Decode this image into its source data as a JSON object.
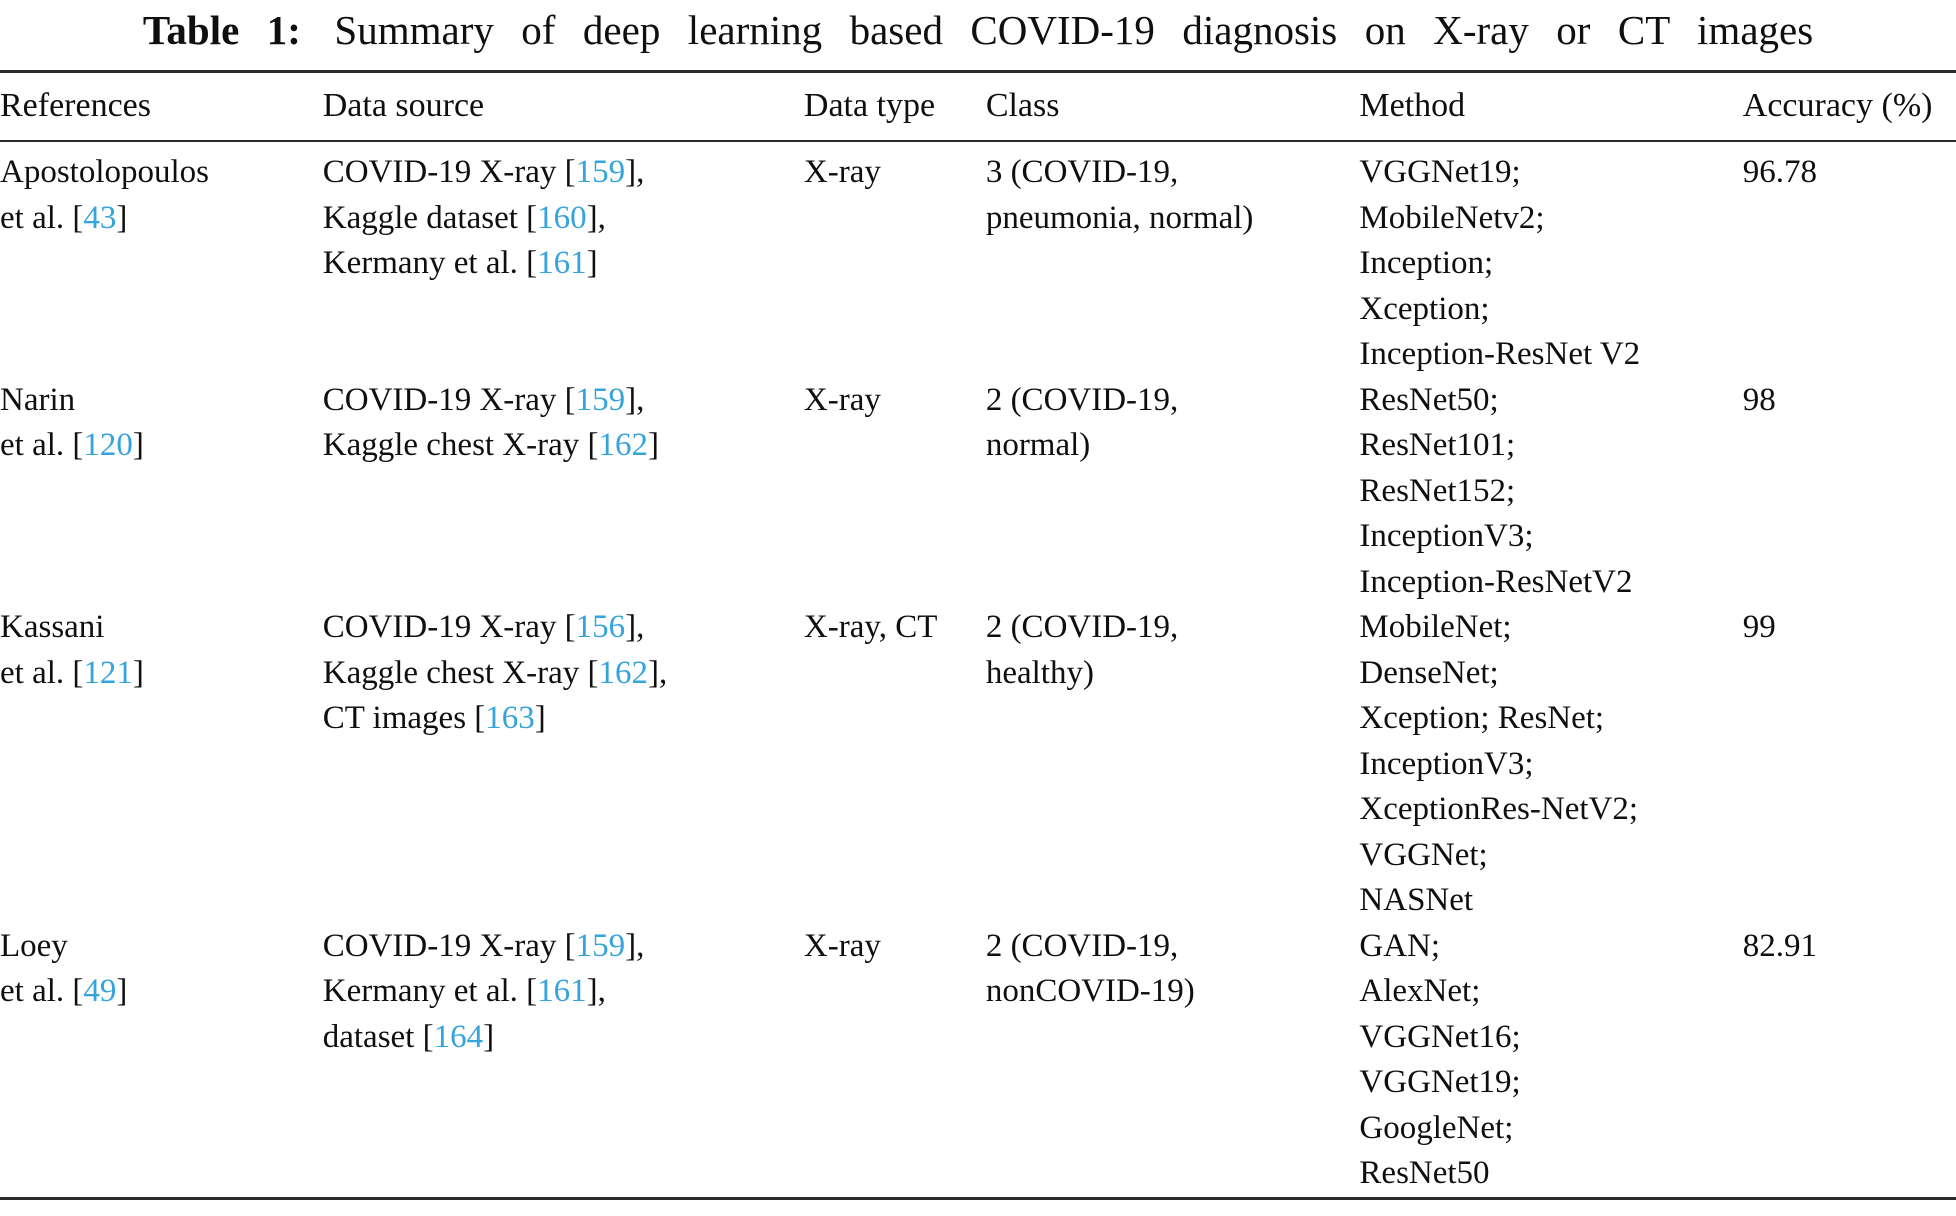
{
  "title": {
    "label": "Table 1:",
    "text": "Summary of deep learning based COVID-19 diagnosis on X-ray or CT images"
  },
  "colors": {
    "citation": "#35a3dc",
    "text": "#0f0f0f",
    "rule": "#2b2b2b"
  },
  "table": {
    "columns": [
      "References",
      "Data source",
      "Data type",
      "Class",
      "Method",
      "Accuracy (%)"
    ],
    "column_keys": [
      "references",
      "data_source",
      "data_type",
      "class",
      "method",
      "accuracy"
    ],
    "rows": [
      {
        "references": [
          [
            {
              "t": "Apostolopoulos"
            }
          ],
          [
            {
              "t": "et al. ["
            },
            {
              "t": "43",
              "c": true
            },
            {
              "t": "]"
            }
          ]
        ],
        "data_source": [
          [
            {
              "t": "COVID-19 X-ray ["
            },
            {
              "t": "159",
              "c": true
            },
            {
              "t": "],"
            }
          ],
          [
            {
              "t": "Kaggle dataset ["
            },
            {
              "t": "160",
              "c": true
            },
            {
              "t": "],"
            }
          ],
          [
            {
              "t": "Kermany et al. ["
            },
            {
              "t": "161",
              "c": true
            },
            {
              "t": "]"
            }
          ]
        ],
        "data_type": [
          [
            {
              "t": "X-ray"
            }
          ]
        ],
        "class": [
          [
            {
              "t": "3 (COVID-19,"
            }
          ],
          [
            {
              "t": "pneumonia, normal)"
            }
          ]
        ],
        "method": [
          [
            {
              "t": "VGGNet19;"
            }
          ],
          [
            {
              "t": "MobileNetv2;"
            }
          ],
          [
            {
              "t": "Inception;"
            }
          ],
          [
            {
              "t": "Xception;"
            }
          ],
          [
            {
              "t": "Inception-ResNet V2"
            }
          ]
        ],
        "accuracy": [
          [
            {
              "t": "96.78"
            }
          ]
        ]
      },
      {
        "references": [
          [
            {
              "t": "Narin"
            }
          ],
          [
            {
              "t": "et al. ["
            },
            {
              "t": "120",
              "c": true
            },
            {
              "t": "]"
            }
          ]
        ],
        "data_source": [
          [
            {
              "t": "COVID-19 X-ray ["
            },
            {
              "t": "159",
              "c": true
            },
            {
              "t": "],"
            }
          ],
          [
            {
              "t": "Kaggle chest X-ray ["
            },
            {
              "t": "162",
              "c": true
            },
            {
              "t": "]"
            }
          ]
        ],
        "data_type": [
          [
            {
              "t": "X-ray"
            }
          ]
        ],
        "class": [
          [
            {
              "t": "2 (COVID-19,"
            }
          ],
          [
            {
              "t": "normal)"
            }
          ]
        ],
        "method": [
          [
            {
              "t": "ResNet50;"
            }
          ],
          [
            {
              "t": "ResNet101;"
            }
          ],
          [
            {
              "t": "ResNet152;"
            }
          ],
          [
            {
              "t": "InceptionV3;"
            }
          ],
          [
            {
              "t": "Inception-ResNetV2"
            }
          ]
        ],
        "accuracy": [
          [
            {
              "t": "98"
            }
          ]
        ]
      },
      {
        "references": [
          [
            {
              "t": "Kassani"
            }
          ],
          [
            {
              "t": "et al. ["
            },
            {
              "t": "121",
              "c": true
            },
            {
              "t": "]"
            }
          ]
        ],
        "data_source": [
          [
            {
              "t": "COVID-19 X-ray ["
            },
            {
              "t": "156",
              "c": true
            },
            {
              "t": "],"
            }
          ],
          [
            {
              "t": "Kaggle chest X-ray ["
            },
            {
              "t": "162",
              "c": true
            },
            {
              "t": "],"
            }
          ],
          [
            {
              "t": "CT images ["
            },
            {
              "t": "163",
              "c": true
            },
            {
              "t": "]"
            }
          ]
        ],
        "data_type": [
          [
            {
              "t": "X-ray, CT"
            }
          ]
        ],
        "class": [
          [
            {
              "t": "2 (COVID-19,"
            }
          ],
          [
            {
              "t": "healthy)"
            }
          ]
        ],
        "method": [
          [
            {
              "t": "MobileNet;"
            }
          ],
          [
            {
              "t": "DenseNet;"
            }
          ],
          [
            {
              "t": "Xception; ResNet;"
            }
          ],
          [
            {
              "t": "InceptionV3;"
            }
          ],
          [
            {
              "t": "XceptionRes-NetV2;"
            }
          ],
          [
            {
              "t": "VGGNet;"
            }
          ],
          [
            {
              "t": "NASNet"
            }
          ]
        ],
        "accuracy": [
          [
            {
              "t": "99"
            }
          ]
        ]
      },
      {
        "references": [
          [
            {
              "t": "Loey"
            }
          ],
          [
            {
              "t": "et al. ["
            },
            {
              "t": "49",
              "c": true
            },
            {
              "t": "]"
            }
          ]
        ],
        "data_source": [
          [
            {
              "t": "COVID-19 X-ray ["
            },
            {
              "t": "159",
              "c": true
            },
            {
              "t": "],"
            }
          ],
          [
            {
              "t": "Kermany et al. ["
            },
            {
              "t": "161",
              "c": true
            },
            {
              "t": "],"
            }
          ],
          [
            {
              "t": "dataset ["
            },
            {
              "t": "164",
              "c": true
            },
            {
              "t": "]"
            }
          ]
        ],
        "data_type": [
          [
            {
              "t": "X-ray"
            }
          ]
        ],
        "class": [
          [
            {
              "t": "2 (COVID-19,"
            }
          ],
          [
            {
              "t": "nonCOVID-19)"
            }
          ]
        ],
        "method": [
          [
            {
              "t": "GAN;"
            }
          ],
          [
            {
              "t": "AlexNet;"
            }
          ],
          [
            {
              "t": "VGGNet16;"
            }
          ],
          [
            {
              "t": "VGGNet19;"
            }
          ],
          [
            {
              "t": "GoogleNet;"
            }
          ],
          [
            {
              "t": "ResNet50"
            }
          ]
        ],
        "accuracy": [
          [
            {
              "t": "82.91"
            }
          ]
        ]
      }
    ]
  }
}
